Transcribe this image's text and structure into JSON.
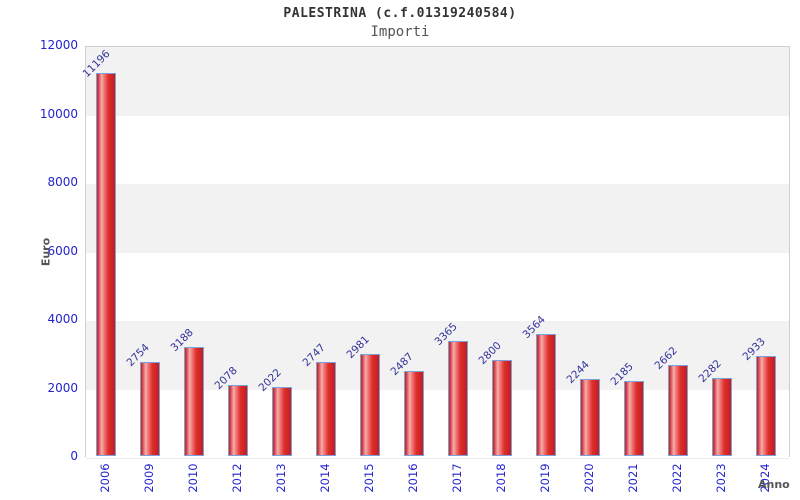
{
  "header": {
    "title": "PALESTRINA (c.f.01319240584)",
    "subtitle": "Importi"
  },
  "chart_data": {
    "type": "bar",
    "title": "PALESTRINA (c.f.01319240584)",
    "subtitle": "Importi",
    "xlabel": "Anno",
    "ylabel": "Euro",
    "categories": [
      "2006",
      "2009",
      "2010",
      "2012",
      "2013",
      "2014",
      "2015",
      "2016",
      "2017",
      "2018",
      "2019",
      "2020",
      "2021",
      "2022",
      "2023",
      "2024"
    ],
    "values": [
      11196,
      2754,
      3188,
      2078,
      2022,
      2747,
      2981,
      2487,
      3365,
      2800,
      3564,
      2244,
      2185,
      2662,
      2282,
      2933
    ],
    "ylim": [
      0,
      12000
    ],
    "yticks": [
      0,
      2000,
      4000,
      6000,
      8000,
      10000,
      12000
    ],
    "grid": "alternating-horizontal-bands",
    "legend": null,
    "colors": {
      "bar_fill": "#e03030",
      "bar_highlight": "#f6adad",
      "bar_border": "#79a1dc",
      "tick_label": "#2424cf",
      "value_label": "#32329b",
      "band_gray": "#f2f2f2",
      "band_white": "#ffffff",
      "axis_title": "#555555",
      "title_text": "#333333",
      "subtitle_text": "#555555"
    }
  }
}
